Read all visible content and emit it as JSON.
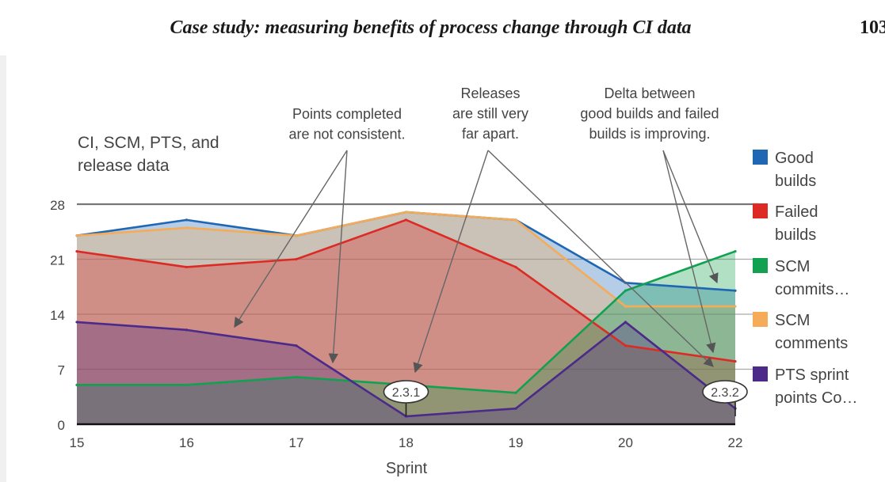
{
  "page": {
    "running_title": "Case study: measuring benefits of process change through CI data",
    "page_number": "103"
  },
  "chart_data": {
    "type": "area",
    "title": "CI, SCM, PTS, and release data",
    "xlabel": "Sprint",
    "ylabel": "",
    "x": [
      "15",
      "16",
      "17",
      "18",
      "19",
      "20",
      "22"
    ],
    "yticks": [
      0,
      7,
      14,
      21,
      28
    ],
    "ylim": [
      0,
      28
    ],
    "grid": true,
    "legend_position": "right",
    "series": [
      {
        "name": "Good builds",
        "color": "#1f66b3",
        "values": [
          24,
          26,
          24,
          27,
          26,
          18,
          17
        ]
      },
      {
        "name": "Failed builds",
        "color": "#dc2b25",
        "values": [
          22,
          20,
          21,
          26,
          20,
          10,
          8
        ]
      },
      {
        "name": "SCM commits…",
        "color": "#12a150",
        "values": [
          5,
          5,
          6,
          5,
          4,
          17,
          22
        ]
      },
      {
        "name": "SCM comments",
        "color": "#f5ab57",
        "values": [
          24,
          25,
          24,
          27,
          26,
          15,
          15
        ]
      },
      {
        "name": "PTS sprint points Co…",
        "color": "#4b2a8a",
        "values": [
          13,
          12,
          10,
          1,
          2,
          13,
          2
        ]
      }
    ],
    "annotations": [
      {
        "lines": [
          "Points completed",
          "are not consistent."
        ]
      },
      {
        "lines": [
          "Releases",
          "are still very",
          "far apart."
        ]
      },
      {
        "lines": [
          "Delta between",
          "good builds and failed",
          "builds is improving."
        ]
      }
    ],
    "releases": [
      {
        "label": "2.3.1",
        "x": "18"
      },
      {
        "label": "2.3.2",
        "x": "22"
      }
    ]
  }
}
